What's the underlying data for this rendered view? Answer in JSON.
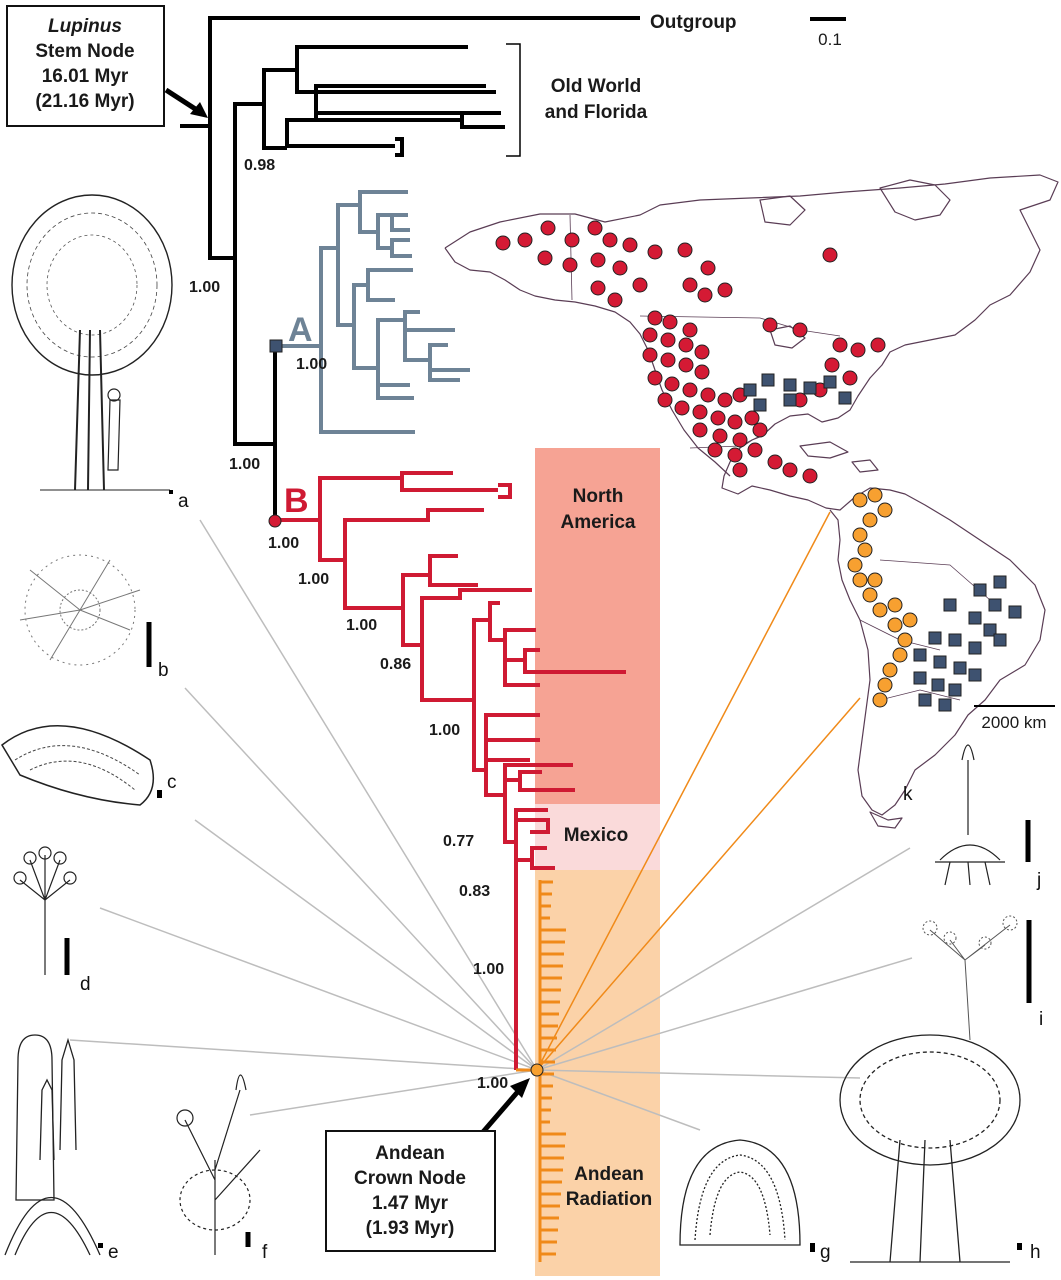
{
  "colors": {
    "black_branch": "#000000",
    "clade_A": "#6e8396",
    "clade_B": "#cf1a33",
    "andean": "#f08a19",
    "north_america_band": "#f6a394",
    "mexico_band": "#fadada",
    "andean_band": "#fbd2a8",
    "marker_red": "#d41a34",
    "marker_blue": "#3e5270",
    "marker_orange": "#f7a030",
    "map_outline": "#5a3d55"
  },
  "stem_node_box": {
    "genus": "Lupinus",
    "line1": "Stem Node",
    "line2": "16.01 Myr",
    "line3": "(21.16 Myr)"
  },
  "crown_node_box": {
    "line1": "Andean",
    "line2": "Crown Node",
    "line3": "1.47 Myr",
    "line4": "(1.93 Myr)"
  },
  "outgroup_label": "Outgroup",
  "scale_tree": "0.1",
  "scale_map": "2000 km",
  "old_world": {
    "line1": "Old World",
    "line2": "and Florida"
  },
  "clade_labels": {
    "A": "A",
    "B": "B"
  },
  "region_bands": {
    "north_america_1": "North",
    "north_america_2": "America",
    "mexico": "Mexico",
    "andean_1": "Andean",
    "andean_2": "Radiation"
  },
  "support_values": {
    "old_world_node": "0.98",
    "lupinus_node": "1.00",
    "clade_A_node": "1.00",
    "ab_node": "1.00",
    "clade_B_node": "1.00",
    "b1": "1.00",
    "b2": "1.00",
    "b3": "0.86",
    "b4": "1.00",
    "b5": "0.77",
    "b6": "0.83",
    "b7": "1.00",
    "andean_node": "1.00"
  },
  "plate_labels": {
    "a": "a",
    "b": "b",
    "c": "c",
    "d": "d",
    "e": "e",
    "f": "f",
    "g": "g",
    "h": "h",
    "i": "i",
    "j": "j",
    "k": "k"
  }
}
